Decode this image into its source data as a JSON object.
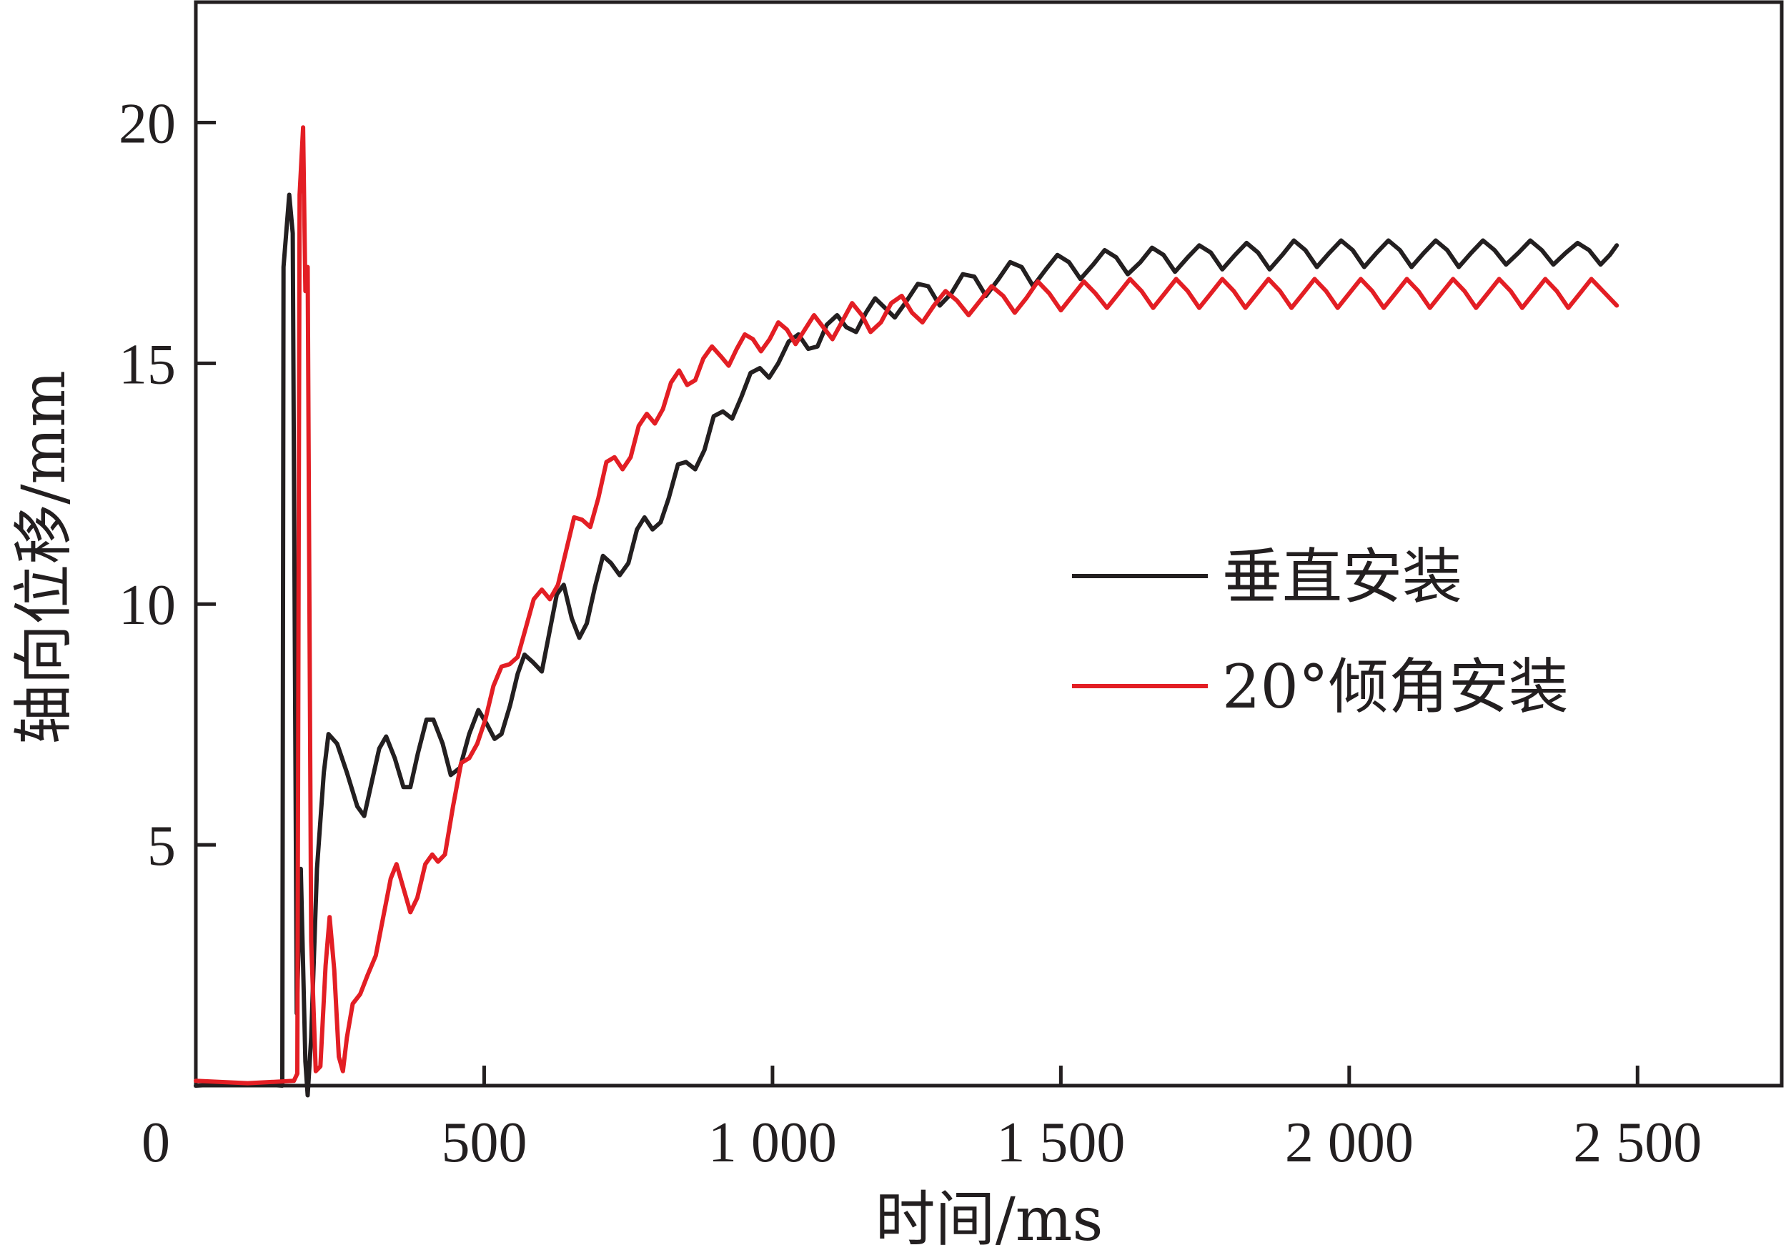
{
  "chart_data": {
    "type": "line",
    "xlabel": "时间/ms",
    "ylabel": "轴向位移/mm",
    "xlim": [
      0,
      2750
    ],
    "ylim": [
      0,
      22.5
    ],
    "x_ticks": [
      {
        "value": 0,
        "label": "0"
      },
      {
        "value": 500,
        "label": "500"
      },
      {
        "value": 1000,
        "label": "1 000"
      },
      {
        "value": 1500,
        "label": "1 500"
      },
      {
        "value": 2000,
        "label": "2 000"
      },
      {
        "value": 2500,
        "label": "2 500"
      }
    ],
    "y_ticks": [
      {
        "value": 5,
        "label": "5"
      },
      {
        "value": 10,
        "label": "10"
      },
      {
        "value": 15,
        "label": "15"
      },
      {
        "value": 20,
        "label": "20"
      }
    ],
    "legend_position": "right",
    "series": [
      {
        "name": "垂直安装",
        "color": "#231f20",
        "points": [
          [
            0,
            0.0
          ],
          [
            80,
            0.05
          ],
          [
            150,
            0.0
          ],
          [
            150,
            0.05
          ],
          [
            152,
            17.0
          ],
          [
            162,
            18.5
          ],
          [
            168,
            17.7
          ],
          [
            175,
            1.5
          ],
          [
            182,
            4.5
          ],
          [
            190,
            0.5
          ],
          [
            194,
            -0.2
          ],
          [
            200,
            1.0
          ],
          [
            210,
            4.5
          ],
          [
            222,
            6.5
          ],
          [
            230,
            7.3
          ],
          [
            245,
            7.1
          ],
          [
            262,
            6.5
          ],
          [
            280,
            5.8
          ],
          [
            292,
            5.6
          ],
          [
            305,
            6.3
          ],
          [
            318,
            7.0
          ],
          [
            330,
            7.25
          ],
          [
            345,
            6.8
          ],
          [
            360,
            6.2
          ],
          [
            372,
            6.2
          ],
          [
            385,
            6.9
          ],
          [
            400,
            7.6
          ],
          [
            412,
            7.6
          ],
          [
            428,
            7.1
          ],
          [
            442,
            6.45
          ],
          [
            458,
            6.6
          ],
          [
            474,
            7.3
          ],
          [
            490,
            7.8
          ],
          [
            505,
            7.5
          ],
          [
            518,
            7.2
          ],
          [
            530,
            7.3
          ],
          [
            545,
            7.9
          ],
          [
            558,
            8.55
          ],
          [
            570,
            8.95
          ],
          [
            584,
            8.8
          ],
          [
            600,
            8.6
          ],
          [
            613,
            9.4
          ],
          [
            626,
            10.2
          ],
          [
            638,
            10.4
          ],
          [
            652,
            9.7
          ],
          [
            665,
            9.3
          ],
          [
            678,
            9.6
          ],
          [
            692,
            10.35
          ],
          [
            706,
            11.0
          ],
          [
            720,
            10.85
          ],
          [
            735,
            10.6
          ],
          [
            750,
            10.85
          ],
          [
            765,
            11.55
          ],
          [
            778,
            11.8
          ],
          [
            792,
            11.55
          ],
          [
            806,
            11.7
          ],
          [
            820,
            12.2
          ],
          [
            836,
            12.9
          ],
          [
            850,
            12.95
          ],
          [
            866,
            12.8
          ],
          [
            882,
            13.2
          ],
          [
            898,
            13.9
          ],
          [
            914,
            14.0
          ],
          [
            930,
            13.85
          ],
          [
            946,
            14.3
          ],
          [
            962,
            14.8
          ],
          [
            978,
            14.9
          ],
          [
            994,
            14.7
          ],
          [
            1010,
            15.0
          ],
          [
            1028,
            15.45
          ],
          [
            1045,
            15.6
          ],
          [
            1062,
            15.3
          ],
          [
            1078,
            15.35
          ],
          [
            1094,
            15.8
          ],
          [
            1112,
            16.0
          ],
          [
            1128,
            15.75
          ],
          [
            1145,
            15.65
          ],
          [
            1162,
            16.05
          ],
          [
            1178,
            16.35
          ],
          [
            1195,
            16.15
          ],
          [
            1212,
            15.95
          ],
          [
            1230,
            16.25
          ],
          [
            1252,
            16.65
          ],
          [
            1270,
            16.6
          ],
          [
            1290,
            16.2
          ],
          [
            1310,
            16.45
          ],
          [
            1330,
            16.85
          ],
          [
            1350,
            16.8
          ],
          [
            1370,
            16.4
          ],
          [
            1392,
            16.75
          ],
          [
            1412,
            17.1
          ],
          [
            1432,
            17.0
          ],
          [
            1452,
            16.6
          ],
          [
            1474,
            16.95
          ],
          [
            1494,
            17.25
          ],
          [
            1514,
            17.1
          ],
          [
            1534,
            16.75
          ],
          [
            1556,
            17.05
          ],
          [
            1576,
            17.35
          ],
          [
            1596,
            17.2
          ],
          [
            1616,
            16.85
          ],
          [
            1638,
            17.1
          ],
          [
            1658,
            17.4
          ],
          [
            1678,
            17.25
          ],
          [
            1698,
            16.9
          ],
          [
            1720,
            17.2
          ],
          [
            1740,
            17.45
          ],
          [
            1760,
            17.3
          ],
          [
            1780,
            16.95
          ],
          [
            1802,
            17.25
          ],
          [
            1822,
            17.5
          ],
          [
            1842,
            17.3
          ],
          [
            1862,
            16.95
          ],
          [
            1884,
            17.25
          ],
          [
            1904,
            17.55
          ],
          [
            1924,
            17.35
          ],
          [
            1944,
            17.0
          ],
          [
            1966,
            17.3
          ],
          [
            1986,
            17.55
          ],
          [
            2006,
            17.35
          ],
          [
            2026,
            17.0
          ],
          [
            2048,
            17.3
          ],
          [
            2068,
            17.55
          ],
          [
            2088,
            17.35
          ],
          [
            2108,
            17.0
          ],
          [
            2130,
            17.3
          ],
          [
            2150,
            17.55
          ],
          [
            2170,
            17.35
          ],
          [
            2190,
            17.0
          ],
          [
            2212,
            17.3
          ],
          [
            2232,
            17.55
          ],
          [
            2252,
            17.35
          ],
          [
            2272,
            17.05
          ],
          [
            2294,
            17.3
          ],
          [
            2314,
            17.55
          ],
          [
            2334,
            17.35
          ],
          [
            2354,
            17.05
          ],
          [
            2376,
            17.3
          ],
          [
            2396,
            17.5
          ],
          [
            2416,
            17.35
          ],
          [
            2436,
            17.05
          ],
          [
            2452,
            17.25
          ],
          [
            2464,
            17.45
          ]
        ]
      },
      {
        "name": "20°倾角安装",
        "color": "#e31e24",
        "points": [
          [
            0,
            0.1
          ],
          [
            90,
            0.05
          ],
          [
            170,
            0.1
          ],
          [
            176,
            0.25
          ],
          [
            180,
            18.5
          ],
          [
            186,
            19.9
          ],
          [
            190,
            16.5
          ],
          [
            194,
            17.0
          ],
          [
            200,
            3.0
          ],
          [
            208,
            0.3
          ],
          [
            216,
            0.4
          ],
          [
            225,
            2.5
          ],
          [
            232,
            3.5
          ],
          [
            240,
            2.4
          ],
          [
            248,
            0.6
          ],
          [
            255,
            0.3
          ],
          [
            262,
            1.0
          ],
          [
            272,
            1.7
          ],
          [
            285,
            1.9
          ],
          [
            298,
            2.3
          ],
          [
            312,
            2.7
          ],
          [
            325,
            3.5
          ],
          [
            338,
            4.3
          ],
          [
            348,
            4.6
          ],
          [
            360,
            4.1
          ],
          [
            372,
            3.6
          ],
          [
            384,
            3.9
          ],
          [
            398,
            4.6
          ],
          [
            410,
            4.8
          ],
          [
            420,
            4.65
          ],
          [
            432,
            4.8
          ],
          [
            446,
            5.8
          ],
          [
            460,
            6.7
          ],
          [
            474,
            6.8
          ],
          [
            488,
            7.1
          ],
          [
            502,
            7.6
          ],
          [
            516,
            8.3
          ],
          [
            530,
            8.7
          ],
          [
            544,
            8.75
          ],
          [
            558,
            8.9
          ],
          [
            572,
            9.5
          ],
          [
            586,
            10.1
          ],
          [
            600,
            10.3
          ],
          [
            614,
            10.1
          ],
          [
            628,
            10.4
          ],
          [
            642,
            11.1
          ],
          [
            656,
            11.8
          ],
          [
            670,
            11.75
          ],
          [
            684,
            11.6
          ],
          [
            698,
            12.2
          ],
          [
            712,
            12.95
          ],
          [
            726,
            13.05
          ],
          [
            740,
            12.8
          ],
          [
            754,
            13.05
          ],
          [
            768,
            13.7
          ],
          [
            782,
            13.95
          ],
          [
            796,
            13.75
          ],
          [
            810,
            14.05
          ],
          [
            824,
            14.6
          ],
          [
            838,
            14.85
          ],
          [
            852,
            14.55
          ],
          [
            866,
            14.65
          ],
          [
            880,
            15.1
          ],
          [
            895,
            15.35
          ],
          [
            910,
            15.15
          ],
          [
            924,
            14.95
          ],
          [
            938,
            15.3
          ],
          [
            952,
            15.6
          ],
          [
            966,
            15.5
          ],
          [
            980,
            15.25
          ],
          [
            995,
            15.5
          ],
          [
            1010,
            15.85
          ],
          [
            1025,
            15.7
          ],
          [
            1040,
            15.4
          ],
          [
            1056,
            15.7
          ],
          [
            1072,
            16.0
          ],
          [
            1088,
            15.75
          ],
          [
            1104,
            15.5
          ],
          [
            1120,
            15.85
          ],
          [
            1138,
            16.25
          ],
          [
            1155,
            16.0
          ],
          [
            1170,
            15.65
          ],
          [
            1188,
            15.85
          ],
          [
            1206,
            16.25
          ],
          [
            1224,
            16.4
          ],
          [
            1242,
            16.05
          ],
          [
            1260,
            15.85
          ],
          [
            1280,
            16.2
          ],
          [
            1300,
            16.5
          ],
          [
            1320,
            16.3
          ],
          [
            1340,
            16.0
          ],
          [
            1360,
            16.3
          ],
          [
            1380,
            16.6
          ],
          [
            1400,
            16.4
          ],
          [
            1420,
            16.05
          ],
          [
            1440,
            16.35
          ],
          [
            1460,
            16.7
          ],
          [
            1480,
            16.45
          ],
          [
            1500,
            16.1
          ],
          [
            1520,
            16.4
          ],
          [
            1540,
            16.7
          ],
          [
            1560,
            16.45
          ],
          [
            1580,
            16.15
          ],
          [
            1600,
            16.45
          ],
          [
            1620,
            16.75
          ],
          [
            1640,
            16.5
          ],
          [
            1660,
            16.15
          ],
          [
            1680,
            16.45
          ],
          [
            1700,
            16.75
          ],
          [
            1720,
            16.5
          ],
          [
            1740,
            16.15
          ],
          [
            1760,
            16.45
          ],
          [
            1780,
            16.75
          ],
          [
            1800,
            16.5
          ],
          [
            1820,
            16.15
          ],
          [
            1840,
            16.45
          ],
          [
            1860,
            16.75
          ],
          [
            1880,
            16.5
          ],
          [
            1900,
            16.15
          ],
          [
            1920,
            16.45
          ],
          [
            1940,
            16.75
          ],
          [
            1960,
            16.5
          ],
          [
            1980,
            16.15
          ],
          [
            2000,
            16.45
          ],
          [
            2020,
            16.75
          ],
          [
            2040,
            16.5
          ],
          [
            2060,
            16.15
          ],
          [
            2080,
            16.45
          ],
          [
            2100,
            16.75
          ],
          [
            2120,
            16.5
          ],
          [
            2140,
            16.15
          ],
          [
            2160,
            16.45
          ],
          [
            2180,
            16.75
          ],
          [
            2200,
            16.5
          ],
          [
            2220,
            16.15
          ],
          [
            2240,
            16.45
          ],
          [
            2260,
            16.75
          ],
          [
            2280,
            16.5
          ],
          [
            2300,
            16.15
          ],
          [
            2320,
            16.45
          ],
          [
            2340,
            16.75
          ],
          [
            2360,
            16.5
          ],
          [
            2380,
            16.15
          ],
          [
            2400,
            16.45
          ],
          [
            2420,
            16.75
          ],
          [
            2440,
            16.5
          ],
          [
            2464,
            16.2
          ]
        ]
      }
    ]
  }
}
